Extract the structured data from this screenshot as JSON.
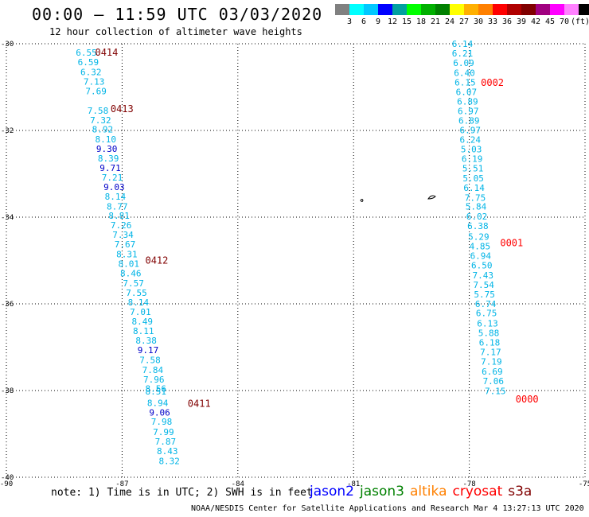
{
  "header": {
    "title": "00:00 – 11:59 UTC 03/03/2020",
    "subtitle": "12 hour collection of altimeter wave heights"
  },
  "color_scale": {
    "swatches": [
      "#808080",
      "#00ffff",
      "#00c8ff",
      "#0000ff",
      "#00a0a0",
      "#00ff00",
      "#00b000",
      "#008000",
      "#ffff00",
      "#ffb000",
      "#ff8000",
      "#ff0000",
      "#b00000",
      "#800000",
      "#a00080",
      "#ff00ff",
      "#ff80ff",
      "#000000"
    ],
    "labels": [
      "3",
      "6",
      "9",
      "12",
      "15",
      "18",
      "21",
      "24",
      "27",
      "30",
      "33",
      "36",
      "39",
      "42",
      "45",
      "70",
      "(ft)"
    ]
  },
  "axes": {
    "lat_labels": [
      "-30",
      "-32",
      "-34",
      "-36",
      "-38",
      "-40"
    ],
    "lon_labels": [
      "-90",
      "-87",
      "-84",
      "-81",
      "-78",
      "-75"
    ],
    "lat_range": [
      -40,
      -30
    ],
    "lon_range": [
      -90,
      -75
    ]
  },
  "passes": [
    {
      "id": "0414",
      "color": "#800000",
      "lat": -30.2,
      "lon": -87.7
    },
    {
      "id": "0413",
      "color": "#800000",
      "lat": -31.5,
      "lon": -87.3
    },
    {
      "id": "0412",
      "color": "#800000",
      "lat": -35.0,
      "lon": -86.4
    },
    {
      "id": "0411",
      "color": "#800000",
      "lat": -38.3,
      "lon": -85.3
    },
    {
      "id": "0002",
      "color": "#ff0000",
      "lat": -30.9,
      "lon": -77.7
    },
    {
      "id": "0001",
      "color": "#ff0000",
      "lat": -34.6,
      "lon": -77.2
    },
    {
      "id": "0000",
      "color": "#ff0000",
      "lat": -38.2,
      "lon": -76.8
    }
  ],
  "tracks": [
    {
      "name": "track-west",
      "color_low": "#00b4e6",
      "color_high": "#0000c8",
      "points": [
        {
          "v": "6.55",
          "lat": -30.2,
          "lon": -88.2
        },
        {
          "v": "6.59",
          "lat": -30.42,
          "lon": -88.15
        },
        {
          "v": "6.32",
          "lat": -30.65,
          "lon": -88.08
        },
        {
          "v": "7.13",
          "lat": -30.87,
          "lon": -88.0
        },
        {
          "v": "7.69",
          "lat": -31.09,
          "lon": -87.95
        },
        {
          "v": "7.58",
          "lat": -31.54,
          "lon": -87.9
        },
        {
          "v": "7.32",
          "lat": -31.76,
          "lon": -87.83
        },
        {
          "v": "8.92",
          "lat": -31.97,
          "lon": -87.78
        },
        {
          "v": "8.10",
          "lat": -32.2,
          "lon": -87.7
        },
        {
          "v": "9.30",
          "lat": -32.42,
          "lon": -87.67
        },
        {
          "v": "8.39",
          "lat": -32.64,
          "lon": -87.63
        },
        {
          "v": "9.71",
          "lat": -32.86,
          "lon": -87.58
        },
        {
          "v": "7.21",
          "lat": -33.08,
          "lon": -87.53
        },
        {
          "v": "9.03",
          "lat": -33.3,
          "lon": -87.48
        },
        {
          "v": "8.14",
          "lat": -33.52,
          "lon": -87.45
        },
        {
          "v": "8.77",
          "lat": -33.75,
          "lon": -87.4
        },
        {
          "v": "8.81",
          "lat": -33.96,
          "lon": -87.35
        },
        {
          "v": "7.26",
          "lat": -34.18,
          "lon": -87.3
        },
        {
          "v": "7.34",
          "lat": -34.4,
          "lon": -87.25
        },
        {
          "v": "7.67",
          "lat": -34.62,
          "lon": -87.2
        },
        {
          "v": "8.31",
          "lat": -34.85,
          "lon": -87.15
        },
        {
          "v": "8.01",
          "lat": -35.07,
          "lon": -87.1
        },
        {
          "v": "8.46",
          "lat": -35.29,
          "lon": -87.05
        },
        {
          "v": "7.57",
          "lat": -35.52,
          "lon": -86.98
        },
        {
          "v": "7.55",
          "lat": -35.74,
          "lon": -86.9
        },
        {
          "v": "8.14",
          "lat": -35.96,
          "lon": -86.85
        },
        {
          "v": "7.01",
          "lat": -36.18,
          "lon": -86.8
        },
        {
          "v": "8.49",
          "lat": -36.4,
          "lon": -86.75
        },
        {
          "v": "8.11",
          "lat": -36.62,
          "lon": -86.72
        },
        {
          "v": "8.38",
          "lat": -36.84,
          "lon": -86.65
        },
        {
          "v": "9.17",
          "lat": -37.06,
          "lon": -86.6
        },
        {
          "v": "7.58",
          "lat": -37.29,
          "lon": -86.55
        },
        {
          "v": "7.84",
          "lat": -37.52,
          "lon": -86.48
        },
        {
          "v": "7.96",
          "lat": -37.74,
          "lon": -86.45
        },
        {
          "v": "8.56",
          "lat": -37.95,
          "lon": -86.4
        },
        {
          "v": "8.51",
          "lat": -38.02,
          "lon": -86.4
        },
        {
          "v": "8.94",
          "lat": -38.28,
          "lon": -86.35
        },
        {
          "v": "9.06",
          "lat": -38.5,
          "lon": -86.3
        },
        {
          "v": "7.98",
          "lat": -38.72,
          "lon": -86.25
        },
        {
          "v": "7.99",
          "lat": -38.95,
          "lon": -86.2
        },
        {
          "v": "7.87",
          "lat": -39.17,
          "lon": -86.15
        },
        {
          "v": "8.43",
          "lat": -39.39,
          "lon": -86.1
        },
        {
          "v": "8.32",
          "lat": -39.62,
          "lon": -86.05
        }
      ]
    },
    {
      "name": "track-east",
      "color_low": "#00b4e6",
      "color_high": "#0000c8",
      "points": [
        {
          "v": "6.14",
          "lat": -30.0,
          "lon": -78.45
        },
        {
          "v": "6.21",
          "lat": -30.22,
          "lon": -78.45
        },
        {
          "v": "6.09",
          "lat": -30.44,
          "lon": -78.42
        },
        {
          "v": "6.40",
          "lat": -30.67,
          "lon": -78.4
        },
        {
          "v": "6.15",
          "lat": -30.89,
          "lon": -78.38
        },
        {
          "v": "6.07",
          "lat": -31.11,
          "lon": -78.35
        },
        {
          "v": "6.89",
          "lat": -31.33,
          "lon": -78.32
        },
        {
          "v": "6.97",
          "lat": -31.55,
          "lon": -78.3
        },
        {
          "v": "6.89",
          "lat": -31.77,
          "lon": -78.28
        },
        {
          "v": "6.97",
          "lat": -31.99,
          "lon": -78.25
        },
        {
          "v": "6.24",
          "lat": -32.21,
          "lon": -78.25
        },
        {
          "v": "5.03",
          "lat": -32.43,
          "lon": -78.22
        },
        {
          "v": "6.19",
          "lat": -32.65,
          "lon": -78.2
        },
        {
          "v": "5.51",
          "lat": -32.87,
          "lon": -78.18
        },
        {
          "v": "5.05",
          "lat": -33.1,
          "lon": -78.17
        },
        {
          "v": "6.14",
          "lat": -33.32,
          "lon": -78.15
        },
        {
          "v": "7.75",
          "lat": -33.55,
          "lon": -78.12
        },
        {
          "v": "5.84",
          "lat": -33.75,
          "lon": -78.1
        },
        {
          "v": "6.02",
          "lat": -33.98,
          "lon": -78.08
        },
        {
          "v": "6.38",
          "lat": -34.2,
          "lon": -78.05
        },
        {
          "v": "5.29",
          "lat": -34.45,
          "lon": -78.03
        },
        {
          "v": "4.85",
          "lat": -34.67,
          "lon": -78.0
        },
        {
          "v": "6.94",
          "lat": -34.89,
          "lon": -77.98
        },
        {
          "v": "6.50",
          "lat": -35.11,
          "lon": -77.95
        },
        {
          "v": "7.43",
          "lat": -35.34,
          "lon": -77.92
        },
        {
          "v": "7.54",
          "lat": -35.56,
          "lon": -77.9
        },
        {
          "v": "5.75",
          "lat": -35.78,
          "lon": -77.88
        },
        {
          "v": "6.74",
          "lat": -36.0,
          "lon": -77.85
        },
        {
          "v": "6.75",
          "lat": -36.21,
          "lon": -77.83
        },
        {
          "v": "6.13",
          "lat": -36.45,
          "lon": -77.8
        },
        {
          "v": "5.88",
          "lat": -36.67,
          "lon": -77.77
        },
        {
          "v": "6.18",
          "lat": -36.89,
          "lon": -77.75
        },
        {
          "v": "7.17",
          "lat": -37.11,
          "lon": -77.72
        },
        {
          "v": "7.19",
          "lat": -37.33,
          "lon": -77.7
        },
        {
          "v": "6.69",
          "lat": -37.56,
          "lon": -77.68
        },
        {
          "v": "7.06",
          "lat": -37.78,
          "lon": -77.65
        },
        {
          "v": "7.15",
          "lat": -38.01,
          "lon": -77.6
        }
      ]
    }
  ],
  "high_threshold": 9.0,
  "note": "note: 1) Time is in UTC; 2) SWH is in feet",
  "legend": [
    {
      "label": "jason2",
      "color": "#0000ff"
    },
    {
      "label": "jason3",
      "color": "#008000"
    },
    {
      "label": "altika",
      "color": "#ff8000"
    },
    {
      "label": "cryosat",
      "color": "#ff0000"
    },
    {
      "label": "s3a",
      "color": "#800000"
    }
  ],
  "credit": "NOAA/NESDIS Center for Satellite Applications and Research   Mar  4 13:27:13 UTC 2020"
}
